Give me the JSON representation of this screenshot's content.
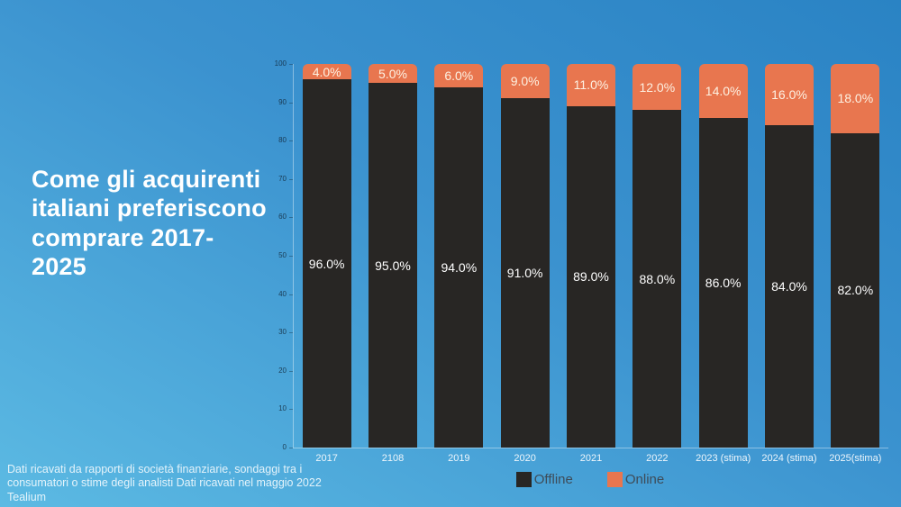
{
  "title": "Come gli acquirenti italiani preferiscono comprare 2017-2025",
  "footer": {
    "lines": [
      "Dati ricavati da rapporti di società finanziarie, sondaggi tra i",
      "consumatori o stime degli analisti Dati ricavati nel maggio 2022",
      "Tealium"
    ]
  },
  "legend": [
    {
      "label": "Offline",
      "color": "#282624"
    },
    {
      "label": "Online",
      "color": "#e8764f"
    }
  ],
  "colors": {
    "background_top_right": "#2a83c4",
    "background_bottom_left": "#5cbae3",
    "offline_bar": "#282624",
    "online_bar": "#e8764f",
    "online_label_text": "#fdf1e2",
    "offline_label_text": "#ffffff",
    "axis_label_text": "#eef6fc",
    "legend_text": "#3e4c59",
    "title_text": "#ffffff"
  },
  "chart_data": {
    "type": "bar",
    "stacked": true,
    "title": "Come gli acquirenti italiani preferiscono comprare 2017-2025",
    "categories": [
      "2017",
      "2108",
      "2019",
      "2020",
      "2021",
      "2022",
      "2023 (stima)",
      "2024 (stima)",
      "2025(stima)"
    ],
    "series": [
      {
        "name": "Offline",
        "color": "#282624",
        "values": [
          96.0,
          95.0,
          94.0,
          91.0,
          89.0,
          88.0,
          86.0,
          84.0,
          82.0
        ]
      },
      {
        "name": "Online",
        "color": "#e8764f",
        "values": [
          4.0,
          5.0,
          6.0,
          9.0,
          11.0,
          12.0,
          14.0,
          16.0,
          18.0
        ]
      }
    ],
    "value_label_format": "one-decimal-percent",
    "xlabel": "",
    "ylabel": "",
    "ylim": [
      0,
      100
    ],
    "y_ticks": [
      0,
      10,
      20,
      30,
      40,
      50,
      60,
      70,
      80,
      90,
      100
    ],
    "grid": false,
    "legend_position": "bottom-center"
  }
}
